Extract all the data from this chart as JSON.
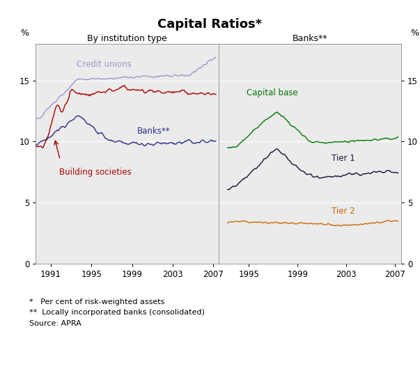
{
  "title": "Capital Ratios*",
  "left_panel_title": "By institution type",
  "right_panel_title": "Banks**",
  "ylabel_left": "%",
  "ylabel_right": "%",
  "ylim": [
    0,
    18
  ],
  "yticks": [
    0,
    5,
    10,
    15
  ],
  "left_xlim": [
    1989.5,
    2007.5
  ],
  "right_xlim": [
    1992.5,
    2007.5
  ],
  "left_xticks": [
    1991,
    1995,
    1999,
    2003,
    2007
  ],
  "right_xticks": [
    1995,
    1999,
    2003,
    2007
  ],
  "footnote1": "*   Per cent of risk-weighted assets",
  "footnote2": "**  Locally incorporated banks (consolidated)",
  "footnote3": "Source: APRA",
  "colors": {
    "credit_unions": "#9999cc",
    "banks_left": "#2b2b8b",
    "building_societies": "#aa0000",
    "capital_base": "#007700",
    "tier1": "#111133",
    "tier2": "#cc6600"
  },
  "panel_bg": "#ebebeb",
  "grid_color": "#ffffff",
  "border_color": "#aaaaaa"
}
